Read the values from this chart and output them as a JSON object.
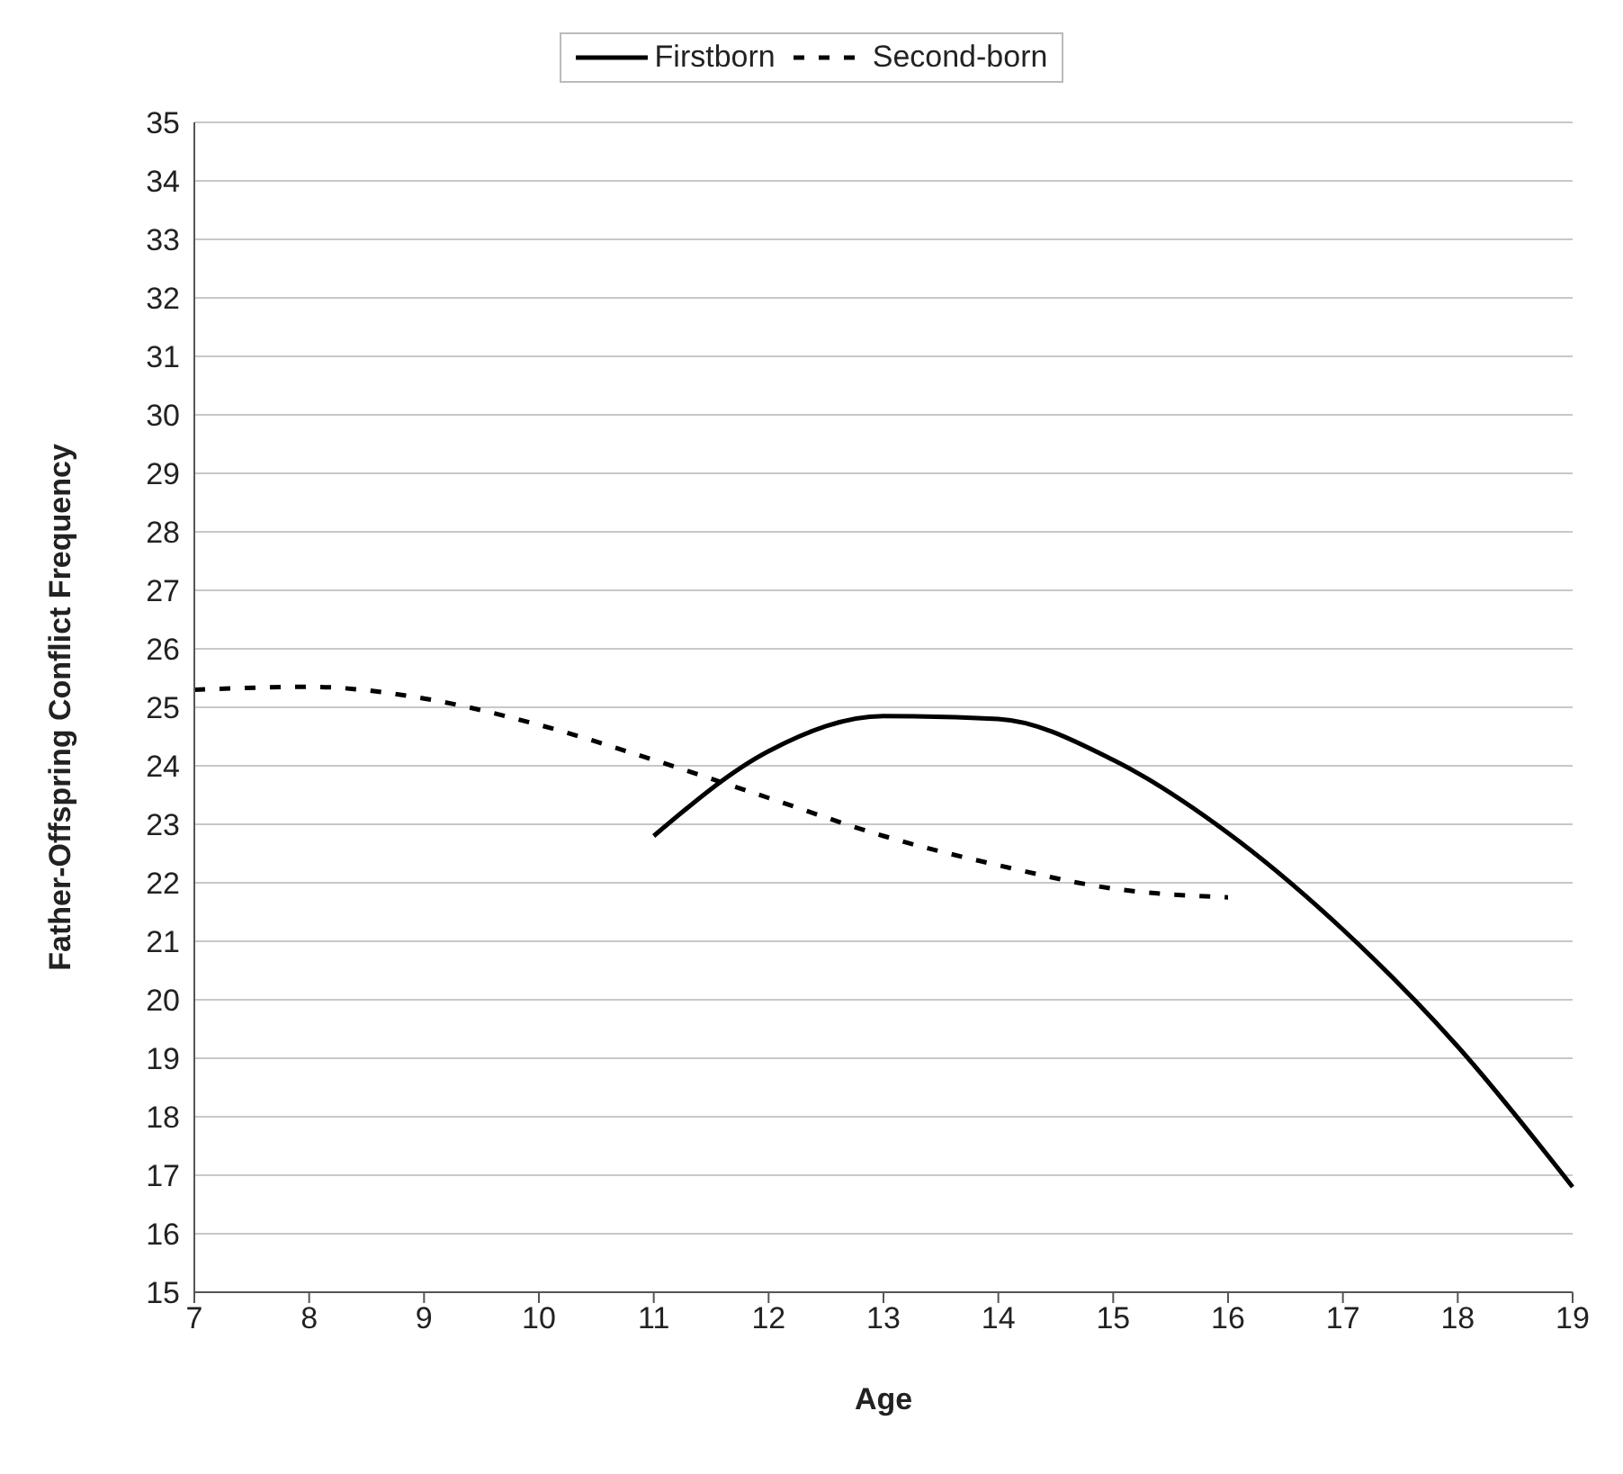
{
  "chart_data": {
    "type": "line",
    "xlabel": "Age",
    "ylabel": "Father-Offspring Conflict Frequency",
    "categories": [
      "7",
      "8",
      "9",
      "10",
      "11",
      "12",
      "13",
      "14",
      "15",
      "16",
      "17",
      "18",
      "19"
    ],
    "series": [
      {
        "name": "Firstborn",
        "color": "#000000",
        "line_style": "solid",
        "values": [
          null,
          null,
          null,
          null,
          22.8,
          24.25,
          24.85,
          24.8,
          24.1,
          22.85,
          21.2,
          19.2,
          16.8
        ]
      },
      {
        "name": "Second-born",
        "color": "#000000",
        "line_style": "dashed",
        "values": [
          25.3,
          25.35,
          25.15,
          24.7,
          24.1,
          23.45,
          22.8,
          22.3,
          21.9,
          21.75,
          null,
          null,
          null
        ]
      }
    ],
    "ylim": [
      15,
      35
    ],
    "yticks": [
      15,
      16,
      17,
      18,
      19,
      20,
      21,
      22,
      23,
      24,
      25,
      26,
      27,
      28,
      29,
      30,
      31,
      32,
      33,
      34,
      35
    ],
    "grid": "y",
    "legend": "top",
    "marker": "none"
  }
}
